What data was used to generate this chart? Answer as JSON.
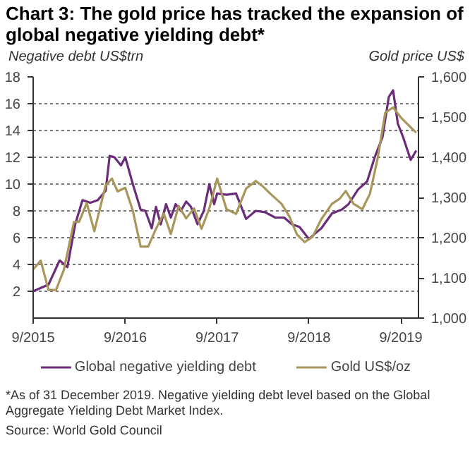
{
  "chart_data": {
    "type": "line",
    "title": "Chart 3: The gold price has tracked the expansion of global negative yielding debt*",
    "ylabel": "Negative debt US$trn",
    "y2label": "Gold price US$",
    "annotations": [
      "*As of 31 December 2019. Negative yielding debt level based on the Global Aggregate Yielding Debt Market Index.",
      "Source: World Gold Council"
    ],
    "xlim": [
      "2015-09-01",
      "2019-11-10"
    ],
    "xticks": [
      {
        "value": "2015-09-01",
        "label": "9/2015"
      },
      {
        "value": "2016-09-01",
        "label": "9/2016"
      },
      {
        "value": "2017-09-01",
        "label": "9/2017"
      },
      {
        "value": "2018-09-01",
        "label": "9/2018"
      },
      {
        "value": "2019-09-01",
        "label": "9/2019"
      }
    ],
    "ylim": [
      0,
      18
    ],
    "yticks": [
      2,
      4,
      6,
      8,
      10,
      12,
      14,
      16,
      18
    ],
    "y2lim": [
      1000,
      1600
    ],
    "y2ticks": [
      {
        "value": 1000,
        "label": "1,000"
      },
      {
        "value": 1100,
        "label": "1,100"
      },
      {
        "value": 1200,
        "label": "1,200"
      },
      {
        "value": 1300,
        "label": "1,300"
      },
      {
        "value": 1400,
        "label": "1,400"
      },
      {
        "value": 1500,
        "label": "1,500"
      },
      {
        "value": 1600,
        "label": "1,600"
      }
    ],
    "grid": "y",
    "legend": "bottom",
    "series": [
      {
        "name": "Global negative yielding debt",
        "color": "#6b2c7a",
        "x": [
          "2015-09-01",
          "2015-11-01",
          "2015-12-15",
          "2016-01-15",
          "2016-02-15",
          "2016-03-15",
          "2016-04-15",
          "2016-05-15",
          "2016-06-15",
          "2016-07-01",
          "2016-07-20",
          "2016-08-15",
          "2016-09-01",
          "2016-10-01",
          "2016-11-01",
          "2016-11-20",
          "2016-12-15",
          "2017-01-01",
          "2017-01-20",
          "2017-02-10",
          "2017-03-01",
          "2017-03-20",
          "2017-04-10",
          "2017-05-01",
          "2017-05-20",
          "2017-06-15",
          "2017-07-10",
          "2017-08-01",
          "2017-08-20",
          "2017-09-01",
          "2017-10-08",
          "2017-11-15",
          "2017-12-25",
          "2018-02-01",
          "2018-03-10",
          "2018-04-20",
          "2018-05-25",
          "2018-06-25",
          "2018-07-25",
          "2018-09-01",
          "2018-10-01",
          "2018-10-20",
          "2018-12-01",
          "2019-01-10",
          "2019-02-05",
          "2019-03-15",
          "2019-04-20",
          "2019-05-20",
          "2019-06-20",
          "2019-07-15",
          "2019-08-01",
          "2019-08-20",
          "2019-09-10",
          "2019-10-10",
          "2019-11-01"
        ],
        "values": [
          2.0,
          2.5,
          4.3,
          3.8,
          7.0,
          8.8,
          8.6,
          8.8,
          9.5,
          12.1,
          12.0,
          11.4,
          12.0,
          10.0,
          8.1,
          8.0,
          6.7,
          8.3,
          7.0,
          8.5,
          7.5,
          8.5,
          8.0,
          8.7,
          8.3,
          7.0,
          8.0,
          10.0,
          8.5,
          9.3,
          9.2,
          9.3,
          7.4,
          8.0,
          7.9,
          7.5,
          7.5,
          7.0,
          6.8,
          5.9,
          6.4,
          6.7,
          7.8,
          8.1,
          8.5,
          9.6,
          10.2,
          12.0,
          13.5,
          16.5,
          17.0,
          14.5,
          13.5,
          11.8,
          12.5
        ]
      },
      {
        "name": "Gold US$/oz",
        "color": "#a8965a",
        "axis": "y2",
        "x": [
          "2015-09-01",
          "2015-10-01",
          "2015-11-01",
          "2015-12-01",
          "2016-01-01",
          "2016-02-10",
          "2016-03-01",
          "2016-04-01",
          "2016-05-01",
          "2016-06-15",
          "2016-07-10",
          "2016-08-01",
          "2016-09-01",
          "2016-10-01",
          "2016-11-01",
          "2016-12-01",
          "2017-01-01",
          "2017-02-01",
          "2017-03-01",
          "2017-04-01",
          "2017-05-01",
          "2017-06-01",
          "2017-07-01",
          "2017-08-01",
          "2017-09-01",
          "2017-10-08",
          "2017-11-15",
          "2017-12-25",
          "2018-02-01",
          "2018-03-01",
          "2018-04-01",
          "2018-05-15",
          "2018-06-15",
          "2018-07-15",
          "2018-08-15",
          "2018-09-15",
          "2018-10-20",
          "2018-12-01",
          "2019-01-01",
          "2019-01-25",
          "2019-02-25",
          "2019-04-01",
          "2019-05-01",
          "2019-06-01",
          "2019-07-01",
          "2019-08-01",
          "2019-09-01",
          "2019-10-01",
          "2019-11-01"
        ],
        "values": [
          1121,
          1143,
          1070,
          1070,
          1120,
          1239,
          1239,
          1286,
          1216,
          1330,
          1347,
          1315,
          1324,
          1267,
          1178,
          1178,
          1222,
          1260,
          1209,
          1279,
          1248,
          1273,
          1222,
          1273,
          1347,
          1271,
          1259,
          1322,
          1341,
          1328,
          1309,
          1284,
          1253,
          1208,
          1189,
          1202,
          1246,
          1284,
          1297,
          1316,
          1284,
          1271,
          1309,
          1398,
          1511,
          1524,
          1499,
          1480,
          1461
        ]
      }
    ]
  }
}
